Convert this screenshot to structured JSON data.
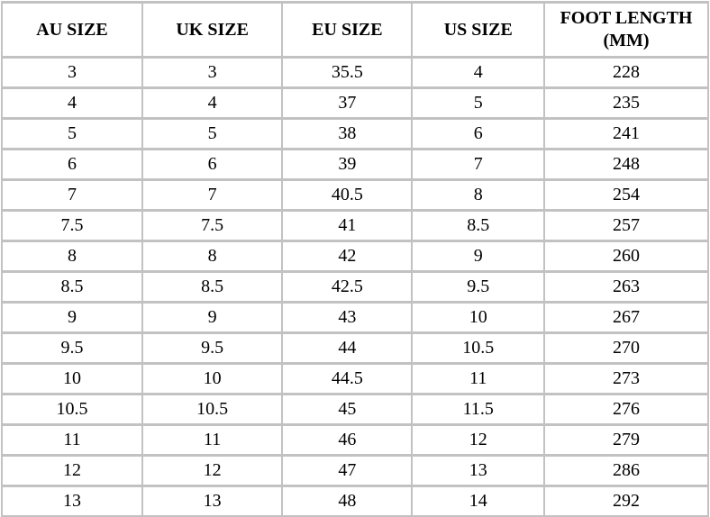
{
  "table": {
    "columns": [
      {
        "key": "au",
        "label": "AU SIZE"
      },
      {
        "key": "uk",
        "label": "UK SIZE"
      },
      {
        "key": "eu",
        "label": "EU SIZE"
      },
      {
        "key": "us",
        "label": "US SIZE"
      },
      {
        "key": "foot_length",
        "label": "FOOT LENGTH (MM)"
      }
    ],
    "rows": [
      [
        "3",
        "3",
        "35.5",
        "4",
        "228"
      ],
      [
        "4",
        "4",
        "37",
        "5",
        "235"
      ],
      [
        "5",
        "5",
        "38",
        "6",
        "241"
      ],
      [
        "6",
        "6",
        "39",
        "7",
        "248"
      ],
      [
        "7",
        "7",
        "40.5",
        "8",
        "254"
      ],
      [
        "7.5",
        "7.5",
        "41",
        "8.5",
        "257"
      ],
      [
        "8",
        "8",
        "42",
        "9",
        "260"
      ],
      [
        "8.5",
        "8.5",
        "42.5",
        "9.5",
        "263"
      ],
      [
        "9",
        "9",
        "43",
        "10",
        "267"
      ],
      [
        "9.5",
        "9.5",
        "44",
        "10.5",
        "270"
      ],
      [
        "10",
        "10",
        "44.5",
        "11",
        "273"
      ],
      [
        "10.5",
        "10.5",
        "45",
        "11.5",
        "276"
      ],
      [
        "11",
        "11",
        "46",
        "12",
        "279"
      ],
      [
        "12",
        "12",
        "47",
        "13",
        "286"
      ],
      [
        "13",
        "13",
        "48",
        "14",
        "292"
      ]
    ],
    "colors": {
      "border": "#c2c2c2",
      "background": "#ffffff",
      "text": "#000000"
    }
  }
}
